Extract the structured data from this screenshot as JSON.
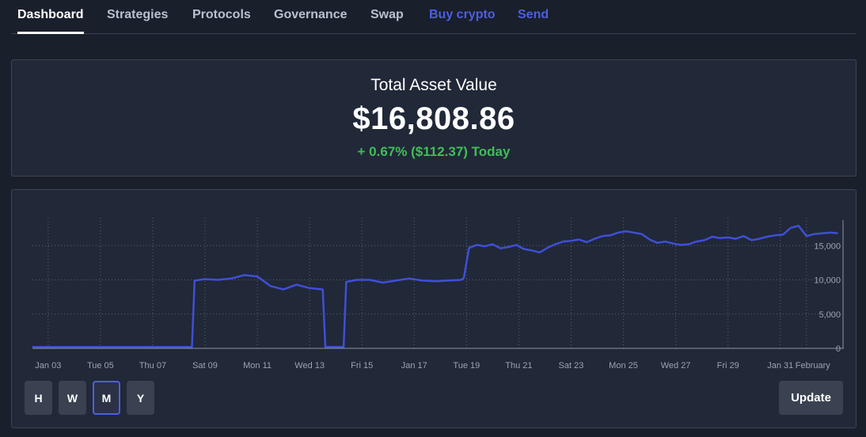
{
  "nav": {
    "tabs": [
      {
        "label": "Dashboard",
        "active": true
      },
      {
        "label": "Strategies"
      },
      {
        "label": "Protocols"
      },
      {
        "label": "Governance"
      },
      {
        "label": "Swap"
      },
      {
        "label": "Buy crypto",
        "accent": true
      },
      {
        "label": "Send",
        "accent": true
      }
    ]
  },
  "summary": {
    "title": "Total Asset Value",
    "value": "$16,808.86",
    "change": "+ 0.67% ($112.37) Today",
    "change_color": "#3fbf55"
  },
  "chart_data": {
    "type": "line",
    "line_color": "#3f4fd6",
    "grid": true,
    "y_ticks": [
      "0",
      "5,000",
      "10,000",
      "15,000"
    ],
    "y_tick_values": [
      0,
      5000,
      10000,
      15000
    ],
    "ylim": [
      0,
      18500
    ],
    "x_ticks": [
      "Jan 03",
      "Tue 05",
      "Thu 07",
      "Sat 09",
      "Mon 11",
      "Wed 13",
      "Fri 15",
      "Jan 17",
      "Tue 19",
      "Thu 21",
      "Sat 23",
      "Mon 25",
      "Wed 27",
      "Fri 29",
      "Jan 31",
      "February"
    ],
    "x_tick_values": [
      3,
      5,
      7,
      9,
      11,
      13,
      15,
      17,
      19,
      21,
      23,
      25,
      27,
      29,
      31,
      32
    ],
    "xlim": [
      2.4,
      33.4
    ],
    "x": [
      2.4,
      8.0,
      8.5,
      8.6,
      9.0,
      9.5,
      10.0,
      10.5,
      11.0,
      11.5,
      12.0,
      12.5,
      13.0,
      13.5,
      13.6,
      14.0,
      14.3,
      14.4,
      14.8,
      15.3,
      15.8,
      16.3,
      16.8,
      17.3,
      17.8,
      18.3,
      18.8,
      18.9,
      19.1,
      19.4,
      19.7,
      20.0,
      20.3,
      20.6,
      20.9,
      21.2,
      21.5,
      21.8,
      22.1,
      22.4,
      22.7,
      23.0,
      23.3,
      23.6,
      23.9,
      24.2,
      24.5,
      24.8,
      25.1,
      25.4,
      25.7,
      26.0,
      26.3,
      26.6,
      26.9,
      27.2,
      27.5,
      27.8,
      28.1,
      28.4,
      28.7,
      29.0,
      29.3,
      29.6,
      29.9,
      30.2,
      30.5,
      30.8,
      31.1,
      31.4,
      31.7,
      32.0,
      32.3,
      32.6,
      32.9,
      33.2
    ],
    "y": [
      200,
      200,
      200,
      9900,
      10100,
      10000,
      10200,
      10700,
      10500,
      9100,
      8600,
      9300,
      8800,
      8600,
      200,
      200,
      200,
      9700,
      10000,
      10000,
      9600,
      9900,
      10200,
      9900,
      9800,
      9900,
      10000,
      10300,
      14700,
      15100,
      14900,
      15200,
      14600,
      14800,
      15100,
      14500,
      14300,
      14000,
      14700,
      15200,
      15600,
      15700,
      15900,
      15500,
      16000,
      16400,
      16500,
      16900,
      17100,
      16900,
      16700,
      15900,
      15400,
      15600,
      15300,
      15100,
      15200,
      15600,
      15800,
      16300,
      16100,
      16200,
      16000,
      16400,
      15800,
      16000,
      16300,
      16500,
      16600,
      17600,
      17900,
      16400,
      16700,
      16800,
      16900,
      16808
    ]
  },
  "range_buttons": [
    {
      "label": "H"
    },
    {
      "label": "W"
    },
    {
      "label": "M",
      "active": true
    },
    {
      "label": "Y"
    }
  ],
  "update_label": "Update"
}
